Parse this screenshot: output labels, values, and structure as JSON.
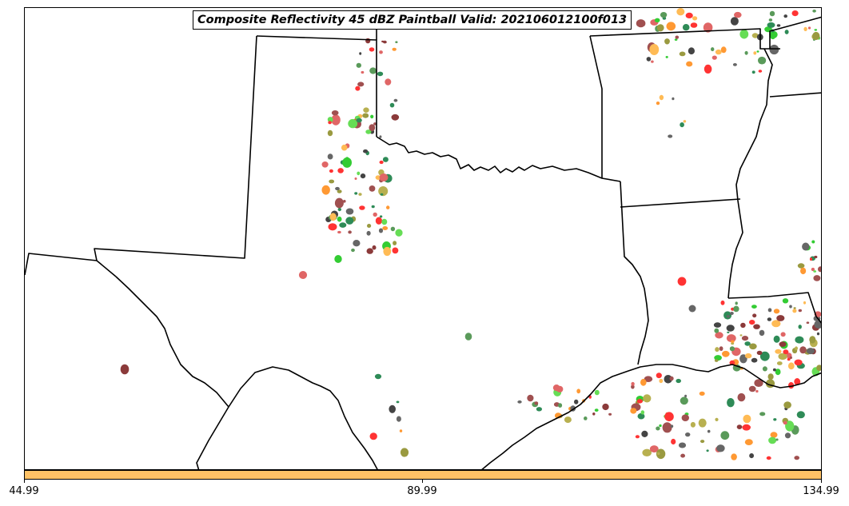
{
  "title": "Composite Reflectivity 45 dBZ Paintball Valid: 202106012100f013",
  "colorbar": {
    "color": "#ffc266",
    "ticks": [
      "44.99",
      "89.99",
      "134.99"
    ]
  },
  "map": {
    "boundary_color": "#000000",
    "paintball_palette": [
      "#ff3333",
      "#e06666",
      "#ff9933",
      "#ffbb55",
      "#8b3a3a",
      "#a05050",
      "#2e8b57",
      "#5a9a5a",
      "#33cc33",
      "#66dd55",
      "#9a9a40",
      "#b8b050",
      "#444444",
      "#666666"
    ]
  }
}
